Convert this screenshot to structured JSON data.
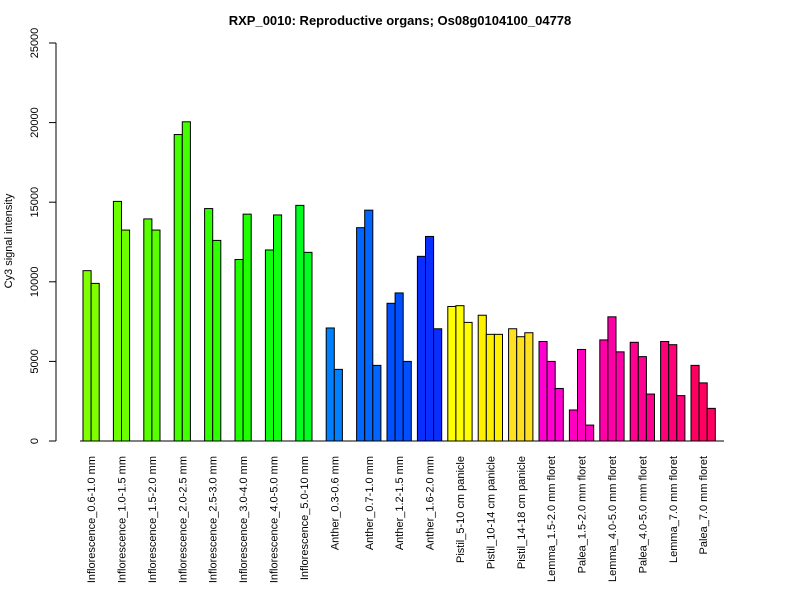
{
  "chart_data": {
    "type": "bar",
    "title": "RXP_0010: Reproductive organs; Os08g0104100_04778",
    "xlabel": "",
    "ylabel": "Cy3 signal intensity",
    "ylim": [
      0,
      25000
    ],
    "yticks": [
      0,
      5000,
      10000,
      15000,
      20000,
      25000
    ],
    "grid": false,
    "groups": [
      {
        "label": "Inflorescence_0.6-1.0 mm",
        "color": "#80ff00",
        "values": [
          10700,
          9900
        ]
      },
      {
        "label": "Inflorescence_1.0-1.5 mm",
        "color": "#6cff00",
        "values": [
          15050,
          13250
        ]
      },
      {
        "label": "Inflorescence_1.5-2.0 mm",
        "color": "#57ff00",
        "values": [
          13950,
          13250
        ]
      },
      {
        "label": "Inflorescence_2.0-2.5 mm",
        "color": "#43ff00",
        "values": [
          19250,
          20050
        ]
      },
      {
        "label": "Inflorescence_2.5-3.0 mm",
        "color": "#2fff00",
        "values": [
          14600,
          12600
        ]
      },
      {
        "label": "Inflorescence_3.0-4.0 mm",
        "color": "#1fff00",
        "values": [
          11400,
          14250
        ]
      },
      {
        "label": "Inflorescence_4.0-5.0 mm",
        "color": "#10ff10",
        "values": [
          12000,
          14200
        ]
      },
      {
        "label": "Inflorescence_5.0-10 mm",
        "color": "#00ff20",
        "values": [
          14800,
          11850
        ]
      },
      {
        "label": "Anther_0.3-0.6 mm",
        "color": "#0080ff",
        "values": [
          7100,
          4500
        ]
      },
      {
        "label": "Anther_0.7-1.0 mm",
        "color": "#0066ff",
        "values": [
          13400,
          14500,
          4750
        ]
      },
      {
        "label": "Anther_1.2-1.5 mm",
        "color": "#0050ff",
        "values": [
          8650,
          9300,
          5000
        ]
      },
      {
        "label": "Anther_1.6-2.0 mm",
        "color": "#0a2eff",
        "values": [
          11600,
          12850,
          7050
        ]
      },
      {
        "label": "Pistil_5-10 cm panicle",
        "color": "#ffff00",
        "values": [
          8450,
          8500,
          7450
        ]
      },
      {
        "label": "Pistil_10-14 cm panicle",
        "color": "#fff000",
        "values": [
          7900,
          6700,
          6700
        ]
      },
      {
        "label": "Pistil_14-18 cm panicle",
        "color": "#ffe020",
        "values": [
          7050,
          6550,
          6800
        ]
      },
      {
        "label": "Lemma_1.5-2.0 mm floret",
        "color": "#ff00d0",
        "values": [
          6250,
          5000,
          3300
        ]
      },
      {
        "label": "Palea_1.5-2.0 mm floret",
        "color": "#ff00c0",
        "values": [
          1950,
          5750,
          1000
        ]
      },
      {
        "label": "Lemma_4.0-5.0 mm floret",
        "color": "#ff00a8",
        "values": [
          6350,
          7800,
          5600
        ]
      },
      {
        "label": "Palea_4.0-5.0 mm floret",
        "color": "#ff0090",
        "values": [
          6200,
          5300,
          2950
        ]
      },
      {
        "label": "Lemma_7.0 mm floret",
        "color": "#ff0078",
        "values": [
          6250,
          6050,
          2850
        ]
      },
      {
        "label": "Palea_7.0 mm floret",
        "color": "#ff0060",
        "values": [
          4750,
          3650,
          2050
        ]
      }
    ]
  }
}
